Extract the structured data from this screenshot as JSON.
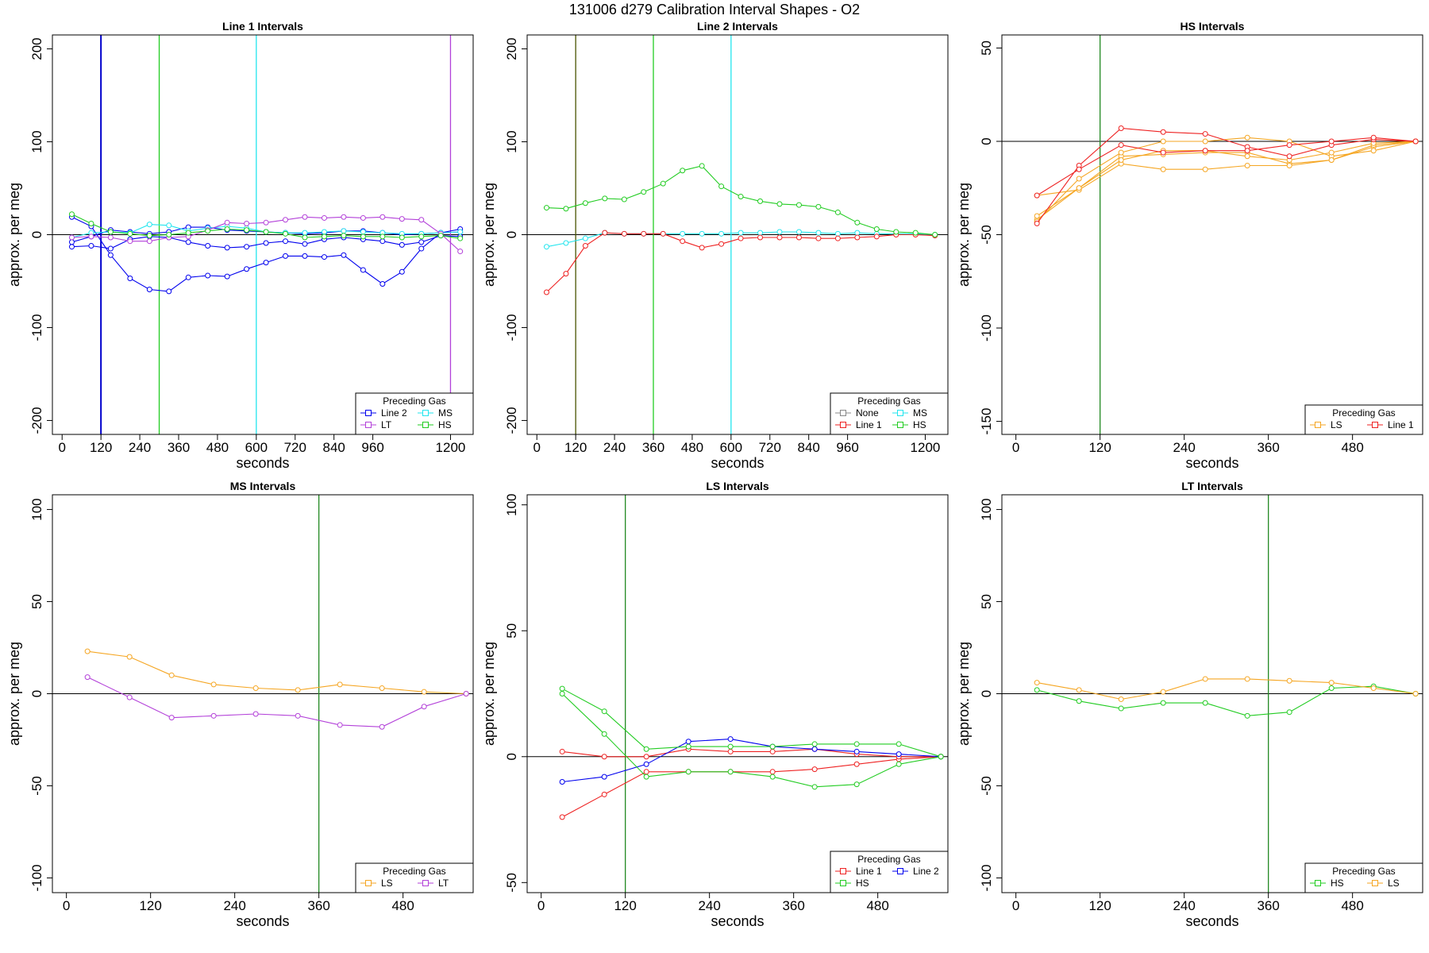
{
  "figure_title": "131006   d279   Calibration Interval Shapes - O2",
  "chart_data": [
    {
      "type": "line",
      "title": "Line 1 Intervals",
      "xlabel": "seconds",
      "ylabel": "approx. per meg",
      "xlim": [
        -30,
        1270
      ],
      "ylim": [
        -215,
        215
      ],
      "xticks": [
        0,
        120,
        240,
        360,
        480,
        600,
        720,
        840,
        960,
        1200
      ],
      "yticks": [
        -200,
        -100,
        0,
        100,
        200
      ],
      "hlines": [
        0
      ],
      "vlines": [
        {
          "x": 120,
          "color": "#0000cc"
        },
        {
          "x": 300,
          "color": "#22cc22"
        },
        {
          "x": 600,
          "color": "#22e5ee"
        },
        {
          "x": 1200,
          "color": "#b341d9"
        }
      ],
      "legend": {
        "title": "Preceding Gas",
        "position": "bottom-right",
        "ncol": 2,
        "entries": [
          "Line 2",
          "MS",
          "LT",
          "HS"
        ]
      },
      "series": [
        {
          "name": "Line 2",
          "color": "#0000ee",
          "x": [
            30,
            90,
            150,
            210,
            270,
            330,
            390,
            450,
            510,
            570,
            630,
            690,
            750,
            810,
            870,
            930,
            990,
            1050,
            1110,
            1170,
            1230
          ],
          "y": [
            -13,
            -12,
            -15,
            -5,
            -2,
            -3,
            -8,
            -12,
            -14,
            -13,
            -9,
            -7,
            -10,
            -5,
            -3,
            -5,
            -7,
            -11,
            -8,
            -1,
            -2
          ]
        },
        {
          "name": "Line 2",
          "color": "#0000ee",
          "x": [
            30,
            90,
            150,
            210,
            270,
            330,
            390,
            450,
            510,
            570,
            630,
            690,
            750,
            810,
            870,
            930,
            990,
            1050,
            1110,
            1170,
            1230
          ],
          "y": [
            19,
            9,
            -22,
            -47,
            -59,
            -61,
            -46,
            -44,
            -45,
            -37,
            -30,
            -23,
            -23,
            -24,
            -22,
            -38,
            -53,
            -40,
            -15,
            2,
            6
          ]
        },
        {
          "name": "Line 2",
          "color": "#0000ee",
          "x": [
            30,
            90,
            150,
            210,
            270,
            330,
            390,
            450,
            510,
            570,
            630,
            690,
            750,
            810,
            870,
            930,
            990,
            1050,
            1110,
            1170,
            1230
          ],
          "y": [
            -8,
            -2,
            5,
            3,
            1,
            3,
            8,
            8,
            5,
            4,
            3,
            2,
            1,
            2,
            4,
            4,
            2,
            0,
            1,
            2,
            3
          ]
        },
        {
          "name": "MS",
          "color": "#22e5ee",
          "x": [
            30,
            90,
            150,
            210,
            270,
            330,
            390,
            450,
            510,
            570,
            630,
            690,
            750,
            810,
            870,
            930,
            990,
            1050,
            1110,
            1170,
            1230
          ],
          "y": [
            -3,
            2,
            3,
            2,
            11,
            10,
            4,
            7,
            9,
            7,
            3,
            2,
            2,
            3,
            4,
            3,
            2,
            1,
            1,
            2,
            3
          ]
        },
        {
          "name": "LT",
          "color": "#b341d9",
          "x": [
            30,
            90,
            150,
            210,
            270,
            330,
            390,
            450,
            510,
            570,
            630,
            690,
            750,
            810,
            870,
            930,
            990,
            1050,
            1110,
            1170,
            1230
          ],
          "y": [
            -3,
            -2,
            -3,
            -7,
            -7,
            -3,
            -2,
            5,
            13,
            12,
            13,
            16,
            19,
            18,
            19,
            18,
            19,
            17,
            16,
            1,
            -18
          ]
        },
        {
          "name": "HS",
          "color": "#22cc22",
          "x": [
            30,
            90,
            150,
            210,
            270,
            330,
            390,
            450,
            510,
            570,
            630,
            690,
            750,
            810,
            870,
            930,
            990,
            1050,
            1110,
            1170,
            1230
          ],
          "y": [
            22,
            12,
            3,
            1,
            -1,
            0,
            2,
            4,
            6,
            5,
            3,
            1,
            -3,
            -2,
            -1,
            -2,
            -2,
            -3,
            -2,
            -1,
            -4
          ]
        }
      ]
    },
    {
      "type": "line",
      "title": "Line 2 Intervals",
      "xlabel": "seconds",
      "ylabel": "approx. per meg",
      "xlim": [
        -30,
        1270
      ],
      "ylim": [
        -215,
        215
      ],
      "xticks": [
        0,
        120,
        240,
        360,
        480,
        600,
        720,
        840,
        960,
        1200
      ],
      "yticks": [
        -200,
        -100,
        0,
        100,
        200
      ],
      "hlines": [
        0
      ],
      "vlines": [
        {
          "x": 120,
          "color": "#4a5500"
        },
        {
          "x": 360,
          "color": "#22cc22"
        },
        {
          "x": 600,
          "color": "#22e5ee"
        }
      ],
      "legend": {
        "title": "Preceding Gas",
        "position": "bottom-right",
        "ncol": 2,
        "entries": [
          "None",
          "MS",
          "Line 1",
          "HS"
        ]
      },
      "series": [
        {
          "name": "MS",
          "color": "#22e5ee",
          "x": [
            30,
            90,
            150,
            210,
            270,
            330,
            390,
            450,
            510,
            570,
            630,
            690,
            750,
            810,
            870,
            930,
            990,
            1050,
            1110,
            1170,
            1230
          ],
          "y": [
            -13,
            -9,
            -4,
            2,
            1,
            1,
            1,
            1,
            1,
            1,
            2,
            2,
            3,
            3,
            2,
            1,
            2,
            1,
            1,
            1,
            0
          ]
        },
        {
          "name": "Line 1",
          "color": "#ee2222",
          "x": [
            30,
            90,
            150,
            210,
            270,
            330,
            390,
            450,
            510,
            570,
            630,
            690,
            750,
            810,
            870,
            930,
            990,
            1050,
            1110,
            1170,
            1230
          ],
          "y": [
            -62,
            -42,
            -12,
            2,
            1,
            1,
            1,
            -7,
            -14,
            -10,
            -4,
            -3,
            -3,
            -3,
            -4,
            -4,
            -3,
            -2,
            0,
            0,
            -1
          ]
        },
        {
          "name": "HS",
          "color": "#22cc22",
          "x": [
            30,
            90,
            150,
            210,
            270,
            330,
            390,
            450,
            510,
            570,
            630,
            690,
            750,
            810,
            870,
            930,
            990,
            1050,
            1110,
            1170,
            1230
          ],
          "y": [
            29,
            28,
            34,
            39,
            38,
            46,
            55,
            69,
            74,
            52,
            41,
            36,
            33,
            32,
            30,
            24,
            13,
            6,
            3,
            2,
            0
          ]
        }
      ]
    },
    {
      "type": "line",
      "title": "HS Intervals",
      "xlabel": "seconds",
      "ylabel": "approx. per meg",
      "xlim": [
        -20,
        580
      ],
      "ylim": [
        -157,
        57
      ],
      "xticks": [
        0,
        120,
        240,
        360,
        480
      ],
      "yticks": [
        -150,
        -100,
        -50,
        0,
        50
      ],
      "hlines": [
        0
      ],
      "vlines": [
        {
          "x": 120,
          "color": "#228822"
        }
      ],
      "legend": {
        "title": "Preceding Gas",
        "position": "bottom-right",
        "ncol": 2,
        "entries": [
          "LS",
          "Line 1"
        ]
      },
      "series": [
        {
          "name": "LS",
          "color": "#f5a623",
          "x": [
            30,
            90,
            150,
            210,
            270,
            330,
            390,
            450,
            510,
            570
          ],
          "y": [
            -42,
            -25,
            -8,
            -7,
            -6,
            -6,
            -12,
            -10,
            -3,
            0
          ]
        },
        {
          "name": "LS",
          "color": "#f5a623",
          "x": [
            30,
            90,
            150,
            210,
            270,
            330,
            390,
            450,
            510,
            570
          ],
          "y": [
            -43,
            -20,
            -6,
            0,
            0,
            2,
            0,
            -8,
            -5,
            0
          ]
        },
        {
          "name": "LS",
          "color": "#f5a623",
          "x": [
            30,
            90,
            150,
            210,
            270,
            330,
            390,
            450,
            510,
            570
          ],
          "y": [
            -29,
            -26,
            -12,
            -15,
            -15,
            -13,
            -13,
            -10,
            -2,
            0
          ]
        },
        {
          "name": "LS",
          "color": "#f5a623",
          "x": [
            30,
            90,
            150,
            210,
            270,
            330,
            390,
            450,
            510,
            570
          ],
          "y": [
            -40,
            -25,
            -10,
            -5,
            -5,
            -8,
            -10,
            -6,
            -1,
            0
          ]
        },
        {
          "name": "Line 1",
          "color": "#ee2222",
          "x": [
            30,
            90,
            150,
            210,
            270,
            330,
            390,
            450,
            510,
            570
          ],
          "y": [
            -44,
            -13,
            7,
            5,
            4,
            -3,
            -8,
            -2,
            1,
            0
          ]
        },
        {
          "name": "Line 1",
          "color": "#ee2222",
          "x": [
            30,
            90,
            150,
            210,
            270,
            330,
            390,
            450,
            510,
            570
          ],
          "y": [
            -29,
            -15,
            -2,
            -6,
            -5,
            -5,
            -2,
            0,
            2,
            0
          ]
        }
      ]
    },
    {
      "type": "line",
      "title": "MS Intervals",
      "xlabel": "seconds",
      "ylabel": "approx. per meg",
      "xlim": [
        -20,
        580
      ],
      "ylim": [
        -108,
        108
      ],
      "xticks": [
        0,
        120,
        240,
        360,
        480
      ],
      "yticks": [
        -100,
        -50,
        0,
        50,
        100
      ],
      "hlines": [
        0
      ],
      "vlines": [
        {
          "x": 360,
          "color": "#228822"
        }
      ],
      "legend": {
        "title": "Preceding Gas",
        "position": "bottom-right",
        "ncol": 2,
        "entries": [
          "LS",
          "LT"
        ]
      },
      "series": [
        {
          "name": "LS",
          "color": "#f5a623",
          "x": [
            30,
            90,
            150,
            210,
            270,
            330,
            390,
            450,
            510,
            570
          ],
          "y": [
            23,
            20,
            10,
            5,
            3,
            2,
            5,
            3,
            1,
            0
          ]
        },
        {
          "name": "LT",
          "color": "#b341d9",
          "x": [
            30,
            90,
            150,
            210,
            270,
            330,
            390,
            450,
            510,
            570
          ],
          "y": [
            9,
            -2,
            -13,
            -12,
            -11,
            -12,
            -17,
            -18,
            -7,
            0
          ]
        }
      ]
    },
    {
      "type": "line",
      "title": "LS Intervals",
      "xlabel": "seconds",
      "ylabel": "approx. per meg",
      "xlim": [
        -20,
        580
      ],
      "ylim": [
        -54,
        104
      ],
      "xticks": [
        0,
        120,
        240,
        360,
        480
      ],
      "yticks": [
        -50,
        0,
        50,
        100
      ],
      "hlines": [
        0
      ],
      "vlines": [
        {
          "x": 120,
          "color": "#228822"
        }
      ],
      "legend": {
        "title": "Preceding Gas",
        "position": "bottom-right",
        "ncol": 2,
        "entries": [
          "Line 1",
          "Line 2",
          "HS"
        ]
      },
      "series": [
        {
          "name": "Line 1",
          "color": "#ee2222",
          "x": [
            30,
            90,
            150,
            210,
            270,
            330,
            390,
            450,
            510,
            570
          ],
          "y": [
            -24,
            -15,
            -6,
            -6,
            -6,
            -6,
            -5,
            -3,
            -1,
            0
          ]
        },
        {
          "name": "Line 1",
          "color": "#ee2222",
          "x": [
            30,
            90,
            150,
            210,
            270,
            330,
            390,
            450,
            510,
            570
          ],
          "y": [
            2,
            0,
            0,
            3,
            2,
            2,
            3,
            1,
            0,
            0
          ]
        },
        {
          "name": "Line 2",
          "color": "#0000ee",
          "x": [
            30,
            90,
            150,
            210,
            270,
            330,
            390,
            450,
            510,
            570
          ],
          "y": [
            -10,
            -8,
            -3,
            6,
            7,
            4,
            3,
            2,
            1,
            0
          ]
        },
        {
          "name": "HS",
          "color": "#22cc22",
          "x": [
            30,
            90,
            150,
            210,
            270,
            330,
            390,
            450,
            510,
            570
          ],
          "y": [
            27,
            18,
            3,
            4,
            4,
            4,
            5,
            5,
            5,
            0
          ]
        },
        {
          "name": "HS",
          "color": "#22cc22",
          "x": [
            30,
            90,
            150,
            210,
            270,
            330,
            390,
            450,
            510,
            570
          ],
          "y": [
            25,
            9,
            -8,
            -6,
            -6,
            -8,
            -12,
            -11,
            -3,
            0
          ]
        }
      ]
    },
    {
      "type": "line",
      "title": "LT Intervals",
      "xlabel": "seconds",
      "ylabel": "approx. per meg",
      "xlim": [
        -20,
        580
      ],
      "ylim": [
        -108,
        108
      ],
      "xticks": [
        0,
        120,
        240,
        360,
        480
      ],
      "yticks": [
        -100,
        -50,
        0,
        50,
        100
      ],
      "hlines": [
        0
      ],
      "vlines": [
        {
          "x": 360,
          "color": "#228822"
        }
      ],
      "legend": {
        "title": "Preceding Gas",
        "position": "bottom-right",
        "ncol": 2,
        "entries": [
          "HS",
          "LS"
        ]
      },
      "series": [
        {
          "name": "HS",
          "color": "#22cc22",
          "x": [
            30,
            90,
            150,
            210,
            270,
            330,
            390,
            450,
            510,
            570
          ],
          "y": [
            2,
            -4,
            -8,
            -5,
            -5,
            -12,
            -10,
            3,
            4,
            0
          ]
        },
        {
          "name": "LS",
          "color": "#f5a623",
          "x": [
            30,
            90,
            150,
            210,
            270,
            330,
            390,
            450,
            510,
            570
          ],
          "y": [
            6,
            2,
            -3,
            1,
            8,
            8,
            7,
            6,
            3,
            0
          ]
        }
      ]
    }
  ]
}
